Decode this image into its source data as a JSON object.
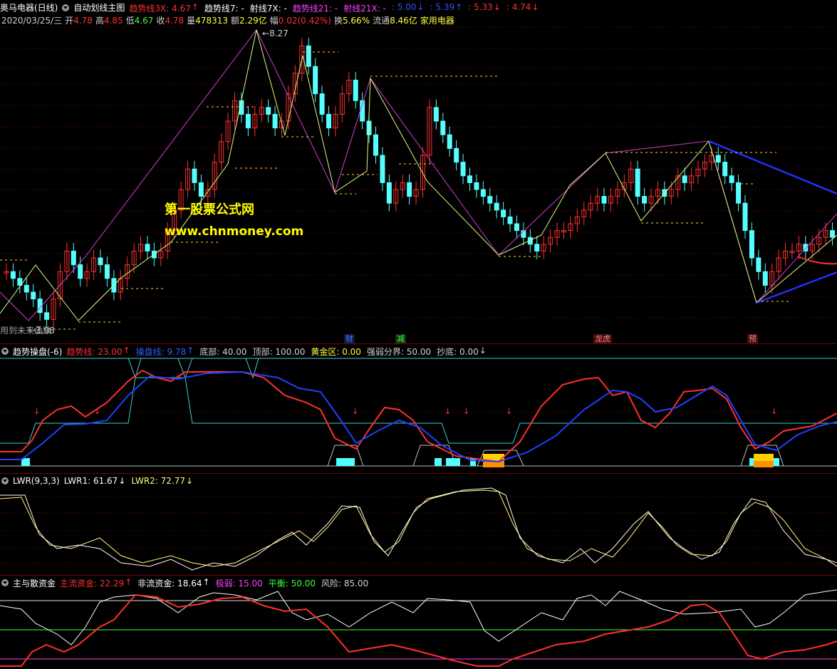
{
  "header": {
    "stock_title": "奥马电器(日线)",
    "main_indicator_name": "自动划线主图",
    "params": [
      {
        "label": "趋势线3X: 4.67",
        "arrow": "↑",
        "color": "#ff3030"
      },
      {
        "label": "趋势线7: -",
        "arrow": "",
        "color": "#ffffff"
      },
      {
        "label": "射线7X: -",
        "arrow": "",
        "color": "#ffffff"
      },
      {
        "label": "趋势线21: -",
        "arrow": "",
        "color": "#ff40ff"
      },
      {
        "label": "射线21X: -",
        "arrow": "",
        "color": "#ff40ff"
      },
      {
        "label": ": 5.00",
        "arrow": "↓",
        "color": "#3050ff"
      },
      {
        "label": ": 5.39",
        "arrow": "↑",
        "color": "#3050ff"
      },
      {
        "label": ": 5.33",
        "arrow": "↓",
        "color": "#ff3030"
      },
      {
        "label": ": 4.74",
        "arrow": "↓",
        "color": "#ff3030"
      }
    ]
  },
  "quote": {
    "date": "2020/03/25/三",
    "open_label": "开",
    "open": "4.78",
    "high_label": "高",
    "high": "4.85",
    "low_label": "低",
    "low": "4.67",
    "close_label": "收",
    "close": "4.78",
    "volume_label": "量",
    "volume": "478313",
    "amount_label": "额",
    "amount": "2.29亿",
    "change_label": "幅",
    "change": "0.02(0.42%)",
    "turnover_label": "换",
    "turnover": "5.66%",
    "float_label": "流通",
    "float": "8.46亿",
    "sector": "家用电器"
  },
  "main_chart": {
    "high_marker": "8.27",
    "low_marker": "3.98",
    "bottom_left_text": "用到未来函数",
    "events": [
      {
        "label": "财",
        "color": "#4080ff"
      },
      {
        "label": "减",
        "color": "#40ff40"
      },
      {
        "label": "龙虎",
        "color": "#ff8080"
      },
      {
        "label": "预",
        "color": "#ff8080"
      }
    ],
    "watermark_cn": "第一股票公式网",
    "watermark_url": "www.chnmoney.com"
  },
  "panel1": {
    "name": "趋势操盘(-6)",
    "items": [
      {
        "label": "趋势线: 23.00",
        "arrow": "↑",
        "color": "#ff3030"
      },
      {
        "label": "操盘线: 9.78",
        "arrow": "↑",
        "color": "#3060ff"
      },
      {
        "label": "底部: 40.00",
        "arrow": "",
        "color": "#d0d0d0"
      },
      {
        "label": "顶部: 100.00",
        "arrow": "",
        "color": "#d0d0d0"
      },
      {
        "label": "黄金区: 0.00",
        "arrow": "",
        "color": "#ffff40"
      },
      {
        "label": "强弱分界: 50.00",
        "arrow": "",
        "color": "#d0d0d0"
      },
      {
        "label": "抄底: 0.00",
        "arrow": "↓",
        "color": "#d0d0d0"
      }
    ]
  },
  "panel2": {
    "name": "LWR(9,3,3)",
    "items": [
      {
        "label": "LWR1: 61.67",
        "arrow": "↓",
        "color": "#ffffff"
      },
      {
        "label": "LWR2: 72.77",
        "arrow": "↓",
        "color": "#ffff80"
      }
    ]
  },
  "panel3": {
    "name": "主与散资金",
    "items": [
      {
        "label": "主流资金: 22.29",
        "arrow": "↑",
        "color": "#ff3030"
      },
      {
        "label": "非流资金: 18.64",
        "arrow": "↑",
        "color": "#ffffff"
      },
      {
        "label": "极弱: 15.00",
        "arrow": "",
        "color": "#ff40ff"
      },
      {
        "label": "平衡: 50.00",
        "arrow": "",
        "color": "#40ff40"
      },
      {
        "label": "风险: 85.00",
        "arrow": "",
        "color": "#d0d0d0"
      }
    ]
  },
  "colors": {
    "up": "#ff3030",
    "down": "#54ffff",
    "trend_magenta": "#d040d0",
    "trend_yellowgreen": "#d8ff80",
    "channel_blue": "#2030ff",
    "dotted": "#ffd040",
    "divider": "#7a0000"
  }
}
